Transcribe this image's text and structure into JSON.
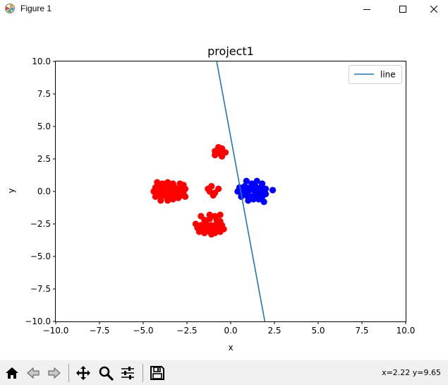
{
  "window": {
    "title": "Figure 1",
    "icon": "matplotlib-icon",
    "controls": [
      "minimize-icon",
      "maximize-icon",
      "close-icon"
    ]
  },
  "toolbar": {
    "buttons": [
      "home-icon",
      "back-icon",
      "forward-icon",
      "pan-icon",
      "zoom-icon",
      "configure-subplots-icon",
      "save-icon"
    ],
    "coords": "x=2.22 y=9.65"
  },
  "chart_data": {
    "type": "scatter",
    "title": "project1",
    "xlabel": "x",
    "ylabel": "y",
    "xlim": [
      -10,
      10
    ],
    "ylim": [
      -10,
      10
    ],
    "xticks": [
      "−10.0",
      "−7.5",
      "−5.0",
      "−2.5",
      "0.0",
      "2.5",
      "5.0",
      "7.5",
      "10.0"
    ],
    "yticks": [
      "10.0",
      "7.5",
      "5.0",
      "2.5",
      "0.0",
      "−2.5",
      "−5.0",
      "−7.5",
      "−10.0"
    ],
    "grid": false,
    "legend": {
      "position": "top-right",
      "entries": [
        "line"
      ]
    },
    "line": {
      "name": "line",
      "color": "#1f77b4",
      "x": [
        -0.8,
        1.95
      ],
      "y": [
        10,
        -10
      ]
    },
    "series": [
      {
        "color": "#ff0000",
        "points": [
          [
            -4.2,
            0.7
          ],
          [
            -3.9,
            0.6
          ],
          [
            -3.6,
            0.7
          ],
          [
            -3.3,
            0.6
          ],
          [
            -2.9,
            0.6
          ],
          [
            -2.7,
            0.5
          ],
          [
            -4.3,
            0.3
          ],
          [
            -4.0,
            0.3
          ],
          [
            -3.8,
            0.4
          ],
          [
            -3.5,
            0.3
          ],
          [
            -3.2,
            0.3
          ],
          [
            -2.9,
            0.2
          ],
          [
            -2.6,
            0.2
          ],
          [
            -4.4,
            0.0
          ],
          [
            -4.1,
            -0.1
          ],
          [
            -3.8,
            0.0
          ],
          [
            -3.5,
            0.0
          ],
          [
            -3.2,
            -0.1
          ],
          [
            -2.9,
            0.0
          ],
          [
            -2.7,
            -0.1
          ],
          [
            -4.3,
            -0.4
          ],
          [
            -4.0,
            -0.3
          ],
          [
            -3.7,
            -0.4
          ],
          [
            -3.4,
            -0.3
          ],
          [
            -3.1,
            -0.4
          ],
          [
            -2.8,
            -0.3
          ],
          [
            -2.6,
            -0.4
          ],
          [
            -4.0,
            -0.7
          ],
          [
            -3.6,
            -0.7
          ],
          [
            -3.3,
            -0.6
          ],
          [
            -3.0,
            -0.5
          ],
          [
            -3.9,
            0.1
          ],
          [
            -3.4,
            0.5
          ],
          [
            -3.0,
            0.1
          ],
          [
            -0.7,
            3.4
          ],
          [
            -0.5,
            3.3
          ],
          [
            -0.9,
            3.1
          ],
          [
            -0.3,
            3.0
          ],
          [
            -0.6,
            2.9
          ],
          [
            -0.9,
            2.8
          ],
          [
            -0.5,
            2.7
          ],
          [
            -0.7,
            3.2
          ],
          [
            -1.3,
            0.2
          ],
          [
            -1.1,
            0.4
          ],
          [
            -0.7,
            0.2
          ],
          [
            -1.2,
            0.0
          ],
          [
            -0.9,
            -0.1
          ],
          [
            -1.0,
            -0.3
          ],
          [
            -1.7,
            -1.9
          ],
          [
            -1.2,
            -1.8
          ],
          [
            -0.9,
            -1.9
          ],
          [
            -0.6,
            -1.8
          ],
          [
            -1.5,
            -2.2
          ],
          [
            -1.2,
            -2.1
          ],
          [
            -0.8,
            -2.2
          ],
          [
            -2.0,
            -2.5
          ],
          [
            -1.7,
            -2.6
          ],
          [
            -1.4,
            -2.5
          ],
          [
            -1.1,
            -2.6
          ],
          [
            -0.8,
            -2.5
          ],
          [
            -0.5,
            -2.6
          ],
          [
            -1.9,
            -2.8
          ],
          [
            -1.6,
            -2.9
          ],
          [
            -1.3,
            -2.8
          ],
          [
            -1.0,
            -2.9
          ],
          [
            -0.7,
            -2.8
          ],
          [
            -0.4,
            -2.9
          ],
          [
            -1.8,
            -3.1
          ],
          [
            -1.5,
            -3.2
          ],
          [
            -1.2,
            -3.1
          ],
          [
            -0.9,
            -3.2
          ],
          [
            -0.6,
            -3.1
          ],
          [
            -1.1,
            -3.3
          ],
          [
            -1.4,
            -2.3
          ],
          [
            -0.6,
            -2.3
          ]
        ]
      },
      {
        "color": "#0000ff",
        "points": [
          [
            0.9,
            0.8
          ],
          [
            1.2,
            0.6
          ],
          [
            1.5,
            0.8
          ],
          [
            1.8,
            0.6
          ],
          [
            0.5,
            0.3
          ],
          [
            0.8,
            0.4
          ],
          [
            1.1,
            0.3
          ],
          [
            1.4,
            0.4
          ],
          [
            1.7,
            0.3
          ],
          [
            2.0,
            0.2
          ],
          [
            0.4,
            0.0
          ],
          [
            0.7,
            -0.1
          ],
          [
            1.0,
            0.0
          ],
          [
            1.3,
            0.1
          ],
          [
            1.6,
            0.0
          ],
          [
            1.9,
            -0.1
          ],
          [
            2.4,
            0.1
          ],
          [
            0.6,
            -0.4
          ],
          [
            0.9,
            -0.3
          ],
          [
            1.2,
            -0.4
          ],
          [
            1.5,
            -0.3
          ],
          [
            1.8,
            -0.4
          ],
          [
            2.0,
            -0.2
          ],
          [
            1.0,
            -0.7
          ],
          [
            1.3,
            -0.6
          ],
          [
            1.6,
            -0.6
          ],
          [
            1.9,
            -0.8
          ],
          [
            0.8,
            0.1
          ],
          [
            1.4,
            -0.1
          ]
        ]
      }
    ]
  }
}
